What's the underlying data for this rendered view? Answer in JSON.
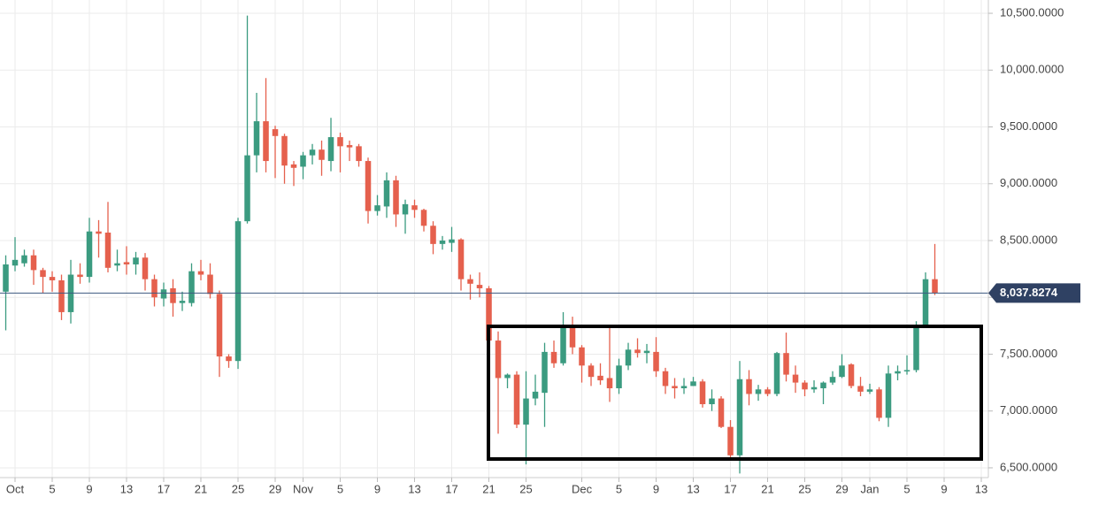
{
  "chart_data": {
    "type": "candlestick",
    "x": [
      0,
      1,
      2,
      3,
      4,
      5,
      6,
      7,
      8,
      9,
      10,
      11,
      12,
      13,
      14,
      15,
      16,
      17,
      18,
      19,
      20,
      21,
      22,
      23,
      24,
      25,
      26,
      27,
      28,
      29,
      30,
      31,
      32,
      33,
      34,
      35,
      36,
      37,
      38,
      39,
      40,
      41,
      42,
      43,
      44,
      45,
      46,
      47,
      48,
      49,
      50,
      51,
      52,
      53,
      54,
      55,
      56,
      57,
      58,
      59,
      60,
      61,
      62,
      63,
      64,
      65,
      66,
      67,
      68,
      69,
      70,
      71,
      72,
      73,
      74,
      75,
      76,
      77,
      78,
      79,
      80,
      81,
      82,
      83,
      84,
      85,
      86,
      87,
      88,
      89,
      90,
      91,
      92,
      93,
      94,
      95,
      96,
      97,
      98,
      99,
      100
    ],
    "open": [
      8050,
      8280,
      8300,
      8370,
      8240,
      8180,
      8150,
      7870,
      8200,
      8180,
      8580,
      8570,
      8280,
      8310,
      8290,
      8350,
      8160,
      7990,
      8080,
      7950,
      7950,
      8230,
      8200,
      8030,
      7480,
      7440,
      8670,
      9250,
      9550,
      9480,
      9420,
      9170,
      9150,
      9250,
      9300,
      9200,
      9410,
      9340,
      9330,
      9200,
      8760,
      8800,
      9030,
      8730,
      8810,
      8770,
      8630,
      8470,
      8480,
      8510,
      8160,
      8110,
      8080,
      7620,
      7290,
      7320,
      6880,
      7110,
      7160,
      7520,
      7420,
      7730,
      7560,
      7400,
      7310,
      7290,
      7200,
      7400,
      7540,
      7510,
      7520,
      7350,
      7220,
      7200,
      7220,
      7260,
      7060,
      7110,
      6860,
      6610,
      7280,
      7150,
      7190,
      7150,
      7510,
      7320,
      7250,
      7190,
      7200,
      7250,
      7300,
      7410,
      7220,
      7170,
      7190,
      6940,
      7330,
      7350,
      7360,
      7760,
      8160
    ],
    "high": [
      8370,
      8530,
      8420,
      8420,
      8260,
      8230,
      8200,
      8330,
      8300,
      8700,
      8680,
      8840,
      8420,
      8450,
      8400,
      8390,
      8200,
      8130,
      8160,
      8050,
      8300,
      8330,
      8300,
      8060,
      7500,
      8700,
      10480,
      9800,
      9930,
      9510,
      9440,
      9200,
      9280,
      9350,
      9380,
      9580,
      9450,
      9380,
      9350,
      9230,
      8900,
      9100,
      9070,
      8860,
      8860,
      8780,
      8670,
      8540,
      8620,
      8520,
      8200,
      8220,
      8100,
      7700,
      7330,
      7350,
      7350,
      7320,
      7600,
      7620,
      7870,
      7830,
      7580,
      7420,
      7420,
      7750,
      7460,
      7600,
      7640,
      7590,
      7650,
      7380,
      7290,
      7290,
      7300,
      7280,
      7190,
      7130,
      6920,
      7440,
      7360,
      7230,
      7210,
      7520,
      7690,
      7400,
      7270,
      7270,
      7260,
      7350,
      7500,
      7420,
      7300,
      7240,
      7210,
      7400,
      7400,
      7490,
      7790,
      8220,
      8470
    ],
    "low": [
      7710,
      8230,
      8270,
      8110,
      8040,
      8050,
      7800,
      7770,
      8120,
      8130,
      8350,
      8220,
      8230,
      8200,
      8200,
      8060,
      7920,
      7920,
      7830,
      7880,
      7920,
      8150,
      7990,
      7300,
      7380,
      7370,
      8650,
      9100,
      9100,
      9050,
      9000,
      8980,
      9040,
      9170,
      9070,
      9110,
      9100,
      9200,
      9150,
      8650,
      8720,
      8700,
      8620,
      8560,
      8700,
      8580,
      8380,
      8420,
      8400,
      8060,
      7980,
      8000,
      7550,
      6800,
      7200,
      6850,
      6530,
      7050,
      6860,
      7380,
      7400,
      7500,
      7250,
      7220,
      7230,
      7080,
      7150,
      7360,
      7470,
      7420,
      7300,
      7150,
      7110,
      7150,
      7220,
      7030,
      7000,
      6850,
      6570,
      6450,
      7050,
      7090,
      7130,
      7130,
      7260,
      7160,
      7130,
      7160,
      7060,
      7230,
      7290,
      7200,
      7130,
      7150,
      6910,
      6860,
      7270,
      7320,
      7340,
      7730,
      8020
    ],
    "close": [
      8290,
      8330,
      8370,
      8240,
      8180,
      8150,
      7870,
      8200,
      8180,
      8580,
      8560,
      8260,
      8300,
      8290,
      8350,
      8160,
      8000,
      8070,
      7950,
      7970,
      8230,
      8200,
      8030,
      7480,
      7440,
      8670,
      9250,
      9550,
      9200,
      9420,
      9160,
      9140,
      9250,
      9300,
      9210,
      9410,
      9330,
      9320,
      9200,
      8760,
      8810,
      9030,
      8730,
      8820,
      8770,
      8630,
      8470,
      8500,
      8510,
      8160,
      8120,
      8080,
      7620,
      7290,
      7320,
      6880,
      7110,
      7170,
      7520,
      7420,
      7730,
      7560,
      7400,
      7300,
      7270,
      7200,
      7400,
      7540,
      7510,
      7530,
      7350,
      7220,
      7200,
      7220,
      7260,
      7060,
      7110,
      6860,
      6610,
      7280,
      7150,
      7190,
      7150,
      7510,
      7320,
      7250,
      7190,
      7210,
      7250,
      7300,
      7400,
      7220,
      7170,
      7190,
      6940,
      7330,
      7350,
      7360,
      7760,
      8160,
      8040
    ],
    "up_color": "#3b9b80",
    "down_color": "#e5604d",
    "xlim": [
      -0.62,
      105.76
    ],
    "xticks": [
      {
        "value": 1,
        "label": "Oct"
      },
      {
        "value": 5,
        "label": "5"
      },
      {
        "value": 9,
        "label": "9"
      },
      {
        "value": 13,
        "label": "13"
      },
      {
        "value": 17,
        "label": "17"
      },
      {
        "value": 21,
        "label": "21"
      },
      {
        "value": 25,
        "label": "25"
      },
      {
        "value": 29,
        "label": "29"
      },
      {
        "value": 32,
        "label": "Nov"
      },
      {
        "value": 36,
        "label": "5"
      },
      {
        "value": 40,
        "label": "9"
      },
      {
        "value": 44,
        "label": "13"
      },
      {
        "value": 48,
        "label": "17"
      },
      {
        "value": 52,
        "label": "21"
      },
      {
        "value": 56,
        "label": "25"
      },
      {
        "value": 62,
        "label": "Dec"
      },
      {
        "value": 66,
        "label": "5"
      },
      {
        "value": 70,
        "label": "9"
      },
      {
        "value": 74,
        "label": "13"
      },
      {
        "value": 78,
        "label": "17"
      },
      {
        "value": 82,
        "label": "21"
      },
      {
        "value": 86,
        "label": "25"
      },
      {
        "value": 90,
        "label": "29"
      },
      {
        "value": 93,
        "label": "Jan"
      },
      {
        "value": 97,
        "label": "5"
      },
      {
        "value": 101,
        "label": "9"
      },
      {
        "value": 105,
        "label": "13"
      }
    ],
    "ylim": [
      6414,
      10617
    ],
    "yticks": [
      {
        "value": 6500,
        "label": "6,500.0000"
      },
      {
        "value": 7000,
        "label": "7,000.0000"
      },
      {
        "value": 7500,
        "label": "7,500.0000"
      },
      {
        "value": 8000,
        "label": "8,000.0000"
      },
      {
        "value": 8500,
        "label": "8,500.0000"
      },
      {
        "value": 9000,
        "label": "9,000.0000"
      },
      {
        "value": 9500,
        "label": "9,500.0000"
      },
      {
        "value": 10000,
        "label": "10,000.0000"
      },
      {
        "value": 10500,
        "label": "10,500.0000"
      }
    ],
    "last_price": {
      "value": 8037.8274,
      "label": "8,037.8274"
    },
    "grid": true
  }
}
